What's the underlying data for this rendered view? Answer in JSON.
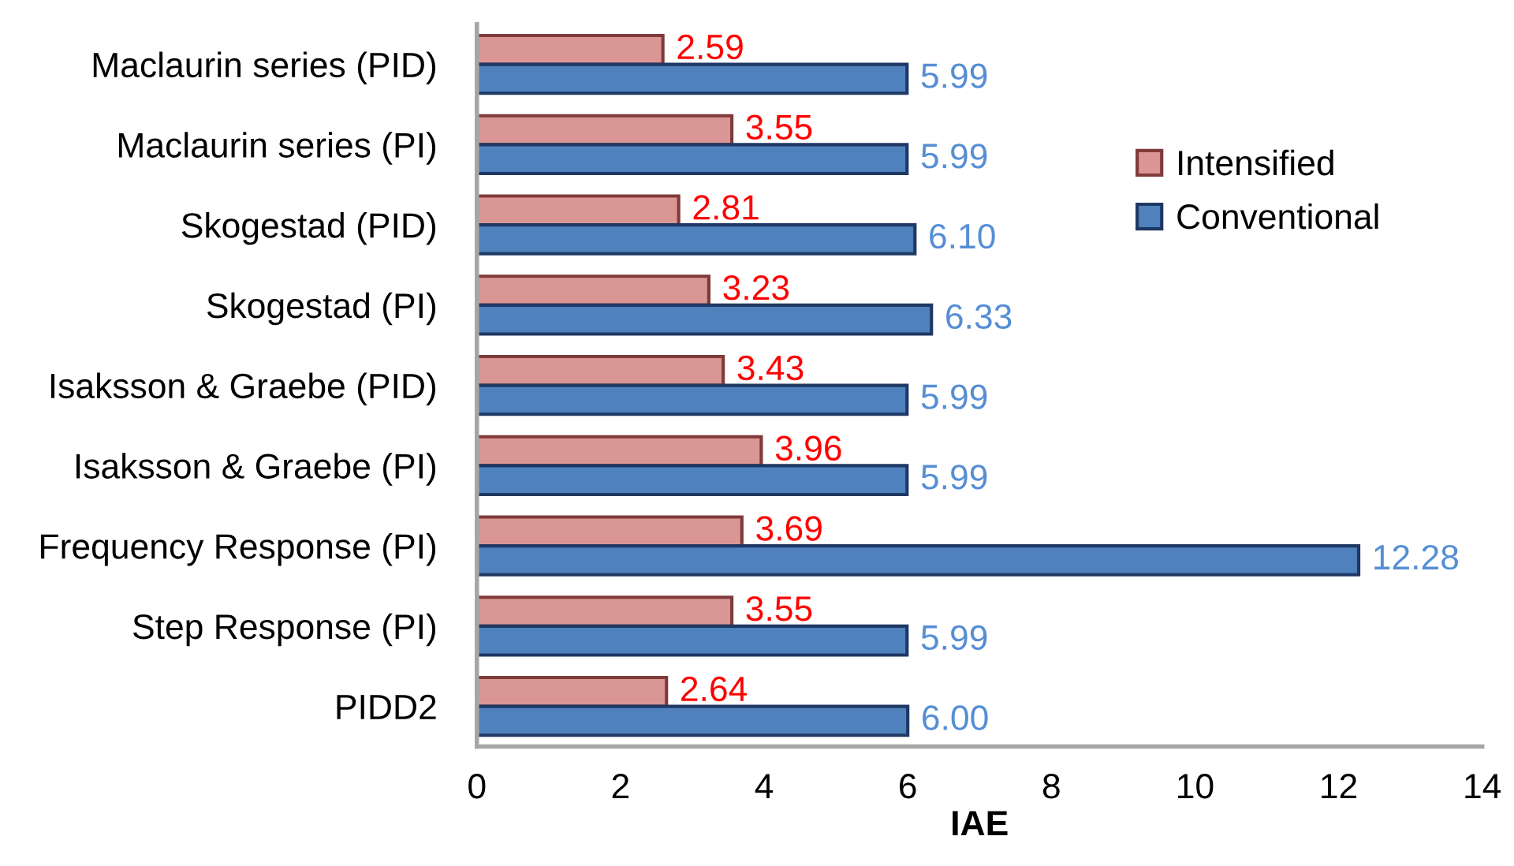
{
  "chart_data": {
    "type": "bar",
    "orientation": "horizontal",
    "xlabel": "IAE",
    "categories": [
      "Maclaurin series (PID)",
      "Maclaurin series (PI)",
      "Skogestad (PID)",
      "Skogestad (PI)",
      "Isaksson & Graebe (PID)",
      "Isaksson & Graebe (PI)",
      "Frequency Response (PI)",
      "Step Response (PI)",
      "PIDD2"
    ],
    "series": [
      {
        "name": "Intensified",
        "color": "#d99694",
        "values": [
          2.59,
          3.55,
          2.81,
          3.23,
          3.43,
          3.96,
          3.69,
          3.55,
          2.64
        ],
        "value_labels": [
          "2.59",
          "3.55",
          "2.81",
          "3.23",
          "3.43",
          "3.96",
          "3.69",
          "3.55",
          "2.64"
        ]
      },
      {
        "name": "Conventional",
        "color": "#4f81bd",
        "values": [
          5.99,
          5.99,
          6.1,
          6.33,
          5.99,
          5.99,
          12.28,
          5.99,
          6.0
        ],
        "value_labels": [
          "5.99",
          "5.99",
          "6.10",
          "6.33",
          "5.99",
          "5.99",
          "12.28",
          "5.99",
          "6.00"
        ]
      }
    ],
    "xlim": [
      0,
      14
    ],
    "xticks": [
      0,
      2,
      4,
      6,
      8,
      10,
      12,
      14
    ],
    "grid": false,
    "legend": "top right"
  }
}
